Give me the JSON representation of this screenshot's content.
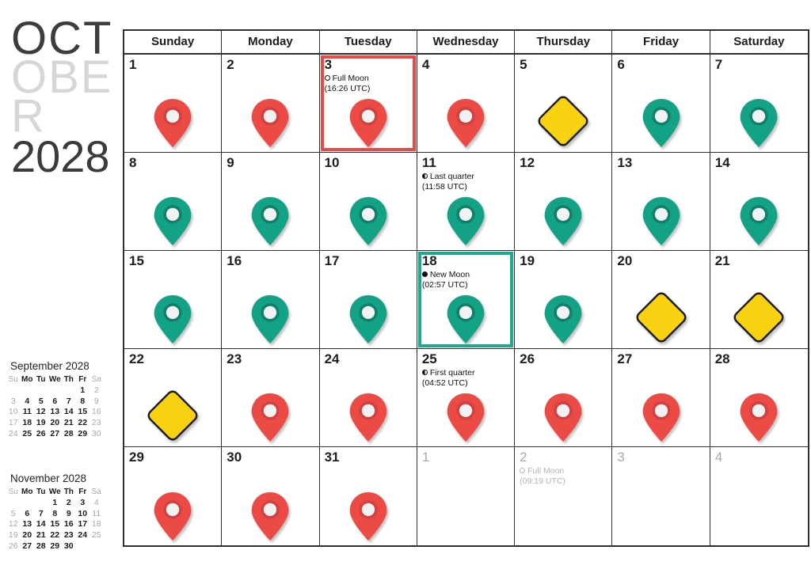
{
  "header": {
    "month_lines": [
      "OCT",
      "OBE",
      "R"
    ],
    "year": "2028"
  },
  "weekday_headers": [
    "Sunday",
    "Monday",
    "Tuesday",
    "Wednesday",
    "Thursday",
    "Friday",
    "Saturday"
  ],
  "colors": {
    "red": "#EB4A45",
    "red_ring": "#D24140",
    "teal": "#14A287",
    "teal_ring": "#0F8168",
    "yellow": "#F8D111",
    "diamond_stroke": "#1B1B1B",
    "marker_inner": "#F2F2F2",
    "highlight_red": "#EC4843",
    "highlight_teal": "#1BAA8E"
  },
  "cells": [
    {
      "day": "1",
      "marker": "red-pin"
    },
    {
      "day": "2",
      "marker": "red-pin"
    },
    {
      "day": "3",
      "marker": "red-pin",
      "highlight": "red",
      "moon": {
        "icon": "full-moon",
        "name": "Full Moon",
        "time": "(16:26 UTC)"
      }
    },
    {
      "day": "4",
      "marker": "red-pin"
    },
    {
      "day": "5",
      "marker": "yellow-diamond"
    },
    {
      "day": "6",
      "marker": "teal-pin"
    },
    {
      "day": "7",
      "marker": "teal-pin"
    },
    {
      "day": "8",
      "marker": "teal-pin"
    },
    {
      "day": "9",
      "marker": "teal-pin"
    },
    {
      "day": "10",
      "marker": "teal-pin"
    },
    {
      "day": "11",
      "marker": "teal-pin",
      "moon": {
        "icon": "last-quarter",
        "name": "Last quarter",
        "time": "(11:58 UTC)"
      }
    },
    {
      "day": "12",
      "marker": "teal-pin"
    },
    {
      "day": "13",
      "marker": "teal-pin"
    },
    {
      "day": "14",
      "marker": "teal-pin"
    },
    {
      "day": "15",
      "marker": "teal-pin"
    },
    {
      "day": "16",
      "marker": "teal-pin"
    },
    {
      "day": "17",
      "marker": "teal-pin"
    },
    {
      "day": "18",
      "marker": "teal-pin",
      "highlight": "teal",
      "moon": {
        "icon": "new-moon",
        "name": "New Moon",
        "time": "(02:57 UTC)"
      }
    },
    {
      "day": "19",
      "marker": "teal-pin"
    },
    {
      "day": "20",
      "marker": "yellow-diamond"
    },
    {
      "day": "21",
      "marker": "yellow-diamond"
    },
    {
      "day": "22",
      "marker": "yellow-diamond"
    },
    {
      "day": "23",
      "marker": "red-pin"
    },
    {
      "day": "24",
      "marker": "red-pin"
    },
    {
      "day": "25",
      "marker": "red-pin",
      "moon": {
        "icon": "first-quarter",
        "name": "First quarter",
        "time": "(04:52 UTC)"
      }
    },
    {
      "day": "26",
      "marker": "red-pin"
    },
    {
      "day": "27",
      "marker": "red-pin"
    },
    {
      "day": "28",
      "marker": "red-pin"
    },
    {
      "day": "29",
      "marker": "red-pin"
    },
    {
      "day": "30",
      "marker": "red-pin"
    },
    {
      "day": "31",
      "marker": "red-pin"
    },
    {
      "day": "1",
      "out": true
    },
    {
      "day": "2",
      "out": true,
      "moon": {
        "icon": "full-moon",
        "name": "Full Moon",
        "time": "(09:19 UTC)"
      }
    },
    {
      "day": "3",
      "out": true
    },
    {
      "day": "4",
      "out": true
    }
  ],
  "mini_calendars": [
    {
      "title": "September 2028",
      "day_headers": [
        "Su",
        "Mo",
        "Tu",
        "We",
        "Th",
        "Fr",
        "Sa"
      ],
      "weeks": [
        [
          "",
          "",
          "",
          "",
          "",
          "1",
          "2"
        ],
        [
          "3",
          "4",
          "5",
          "6",
          "7",
          "8",
          "9"
        ],
        [
          "10",
          "11",
          "12",
          "13",
          "14",
          "15",
          "16"
        ],
        [
          "17",
          "18",
          "19",
          "20",
          "21",
          "22",
          "23"
        ],
        [
          "24",
          "25",
          "26",
          "27",
          "28",
          "29",
          "30"
        ]
      ]
    },
    {
      "title": "November 2028",
      "day_headers": [
        "Su",
        "Mo",
        "Tu",
        "We",
        "Th",
        "Fr",
        "Sa"
      ],
      "weeks": [
        [
          "",
          "",
          "",
          "1",
          "2",
          "3",
          "4"
        ],
        [
          "5",
          "6",
          "7",
          "8",
          "9",
          "10",
          "11"
        ],
        [
          "12",
          "13",
          "14",
          "15",
          "16",
          "17",
          "18"
        ],
        [
          "19",
          "20",
          "21",
          "22",
          "23",
          "24",
          "25"
        ],
        [
          "26",
          "27",
          "28",
          "29",
          "30",
          "",
          ""
        ]
      ]
    }
  ]
}
